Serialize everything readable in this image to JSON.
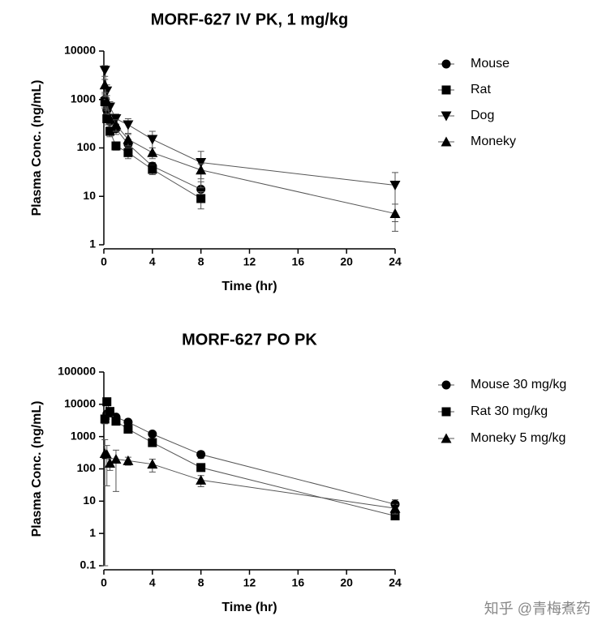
{
  "chart_data": [
    {
      "type": "line",
      "title": "MORF-627 IV PK, 1 mg/kg",
      "x_label": "Time (hr)",
      "y_label": "Plasma Conc. (ng/mL)",
      "log_y": true,
      "xlim": [
        0,
        24
      ],
      "xticks": [
        0,
        4,
        8,
        12,
        16,
        20,
        24
      ],
      "ylim": [
        1,
        10000
      ],
      "yticks": [
        1,
        10,
        100,
        1000,
        10000
      ],
      "series": [
        {
          "name": "Mouse",
          "color": "#000000",
          "marker": "circle",
          "x": [
            0.083,
            0.25,
            0.5,
            1,
            2,
            4,
            8
          ],
          "values": [
            1000,
            600,
            350,
            250,
            120,
            42,
            14
          ],
          "errors": [
            300,
            150,
            80,
            60,
            30,
            8,
            6
          ]
        },
        {
          "name": "Rat",
          "color": "#000000",
          "marker": "square",
          "x": [
            0.083,
            0.25,
            0.5,
            1,
            2,
            4,
            8
          ],
          "values": [
            900,
            400,
            220,
            110,
            80,
            36,
            9
          ],
          "errors": [
            250,
            100,
            50,
            20,
            20,
            8,
            3.5
          ]
        },
        {
          "name": "Dog",
          "color": "#000000",
          "marker": "triangle-down",
          "x": [
            0.083,
            0.25,
            0.5,
            1,
            2,
            4,
            8,
            24
          ],
          "values": [
            4000,
            1500,
            700,
            400,
            300,
            150,
            50,
            17
          ],
          "errors": [
            1000,
            500,
            200,
            100,
            100,
            70,
            35,
            14
          ]
        },
        {
          "name": "Moneky",
          "color": "#000000",
          "marker": "triangle",
          "x": [
            0.083,
            0.25,
            0.5,
            1,
            2,
            4,
            8,
            24
          ],
          "values": [
            2000,
            900,
            400,
            300,
            150,
            80,
            35,
            4.4
          ],
          "errors": [
            600,
            300,
            100,
            80,
            40,
            20,
            12,
            2.5
          ]
        }
      ]
    },
    {
      "type": "line",
      "title": "MORF-627 PO PK",
      "x_label": "Time (hr)",
      "y_label": "Plasma Conc. (ng/mL)",
      "log_y": true,
      "xlim": [
        0,
        24
      ],
      "xticks": [
        0,
        4,
        8,
        12,
        16,
        20,
        24
      ],
      "ylim": [
        0.1,
        100000
      ],
      "yticks": [
        0.1,
        1,
        10,
        100,
        1000,
        10000,
        100000
      ],
      "series": [
        {
          "name": "Mouse 30 mg/kg",
          "color": "#000000",
          "marker": "circle",
          "x": [
            0.25,
            0.5,
            1,
            2,
            4,
            8,
            24
          ],
          "values": [
            5000,
            5500,
            4000,
            2800,
            1200,
            280,
            8
          ],
          "errors": [
            1500,
            1500,
            800,
            500,
            200,
            70,
            3
          ]
        },
        {
          "name": "Rat 30 mg/kg",
          "color": "#000000",
          "marker": "square",
          "x": [
            0.083,
            0.25,
            0.5,
            1,
            2,
            4,
            8,
            24
          ],
          "values": [
            3500,
            12000,
            6000,
            3000,
            1700,
            650,
            110,
            3.5
          ],
          "errors": [
            1000,
            3000,
            1500,
            700,
            400,
            150,
            25,
            0.8
          ]
        },
        {
          "name": "Moneky 5 mg/kg",
          "color": "#000000",
          "marker": "triangle",
          "x": [
            0.083,
            0.25,
            0.5,
            1,
            2,
            4,
            8,
            24
          ],
          "values": [
            300,
            280,
            150,
            200,
            180,
            140,
            45,
            6
          ],
          "errors": [
            500,
            250,
            60,
            180,
            50,
            60,
            17,
            2
          ]
        }
      ]
    }
  ],
  "watermark": "知乎 @青梅煮药"
}
